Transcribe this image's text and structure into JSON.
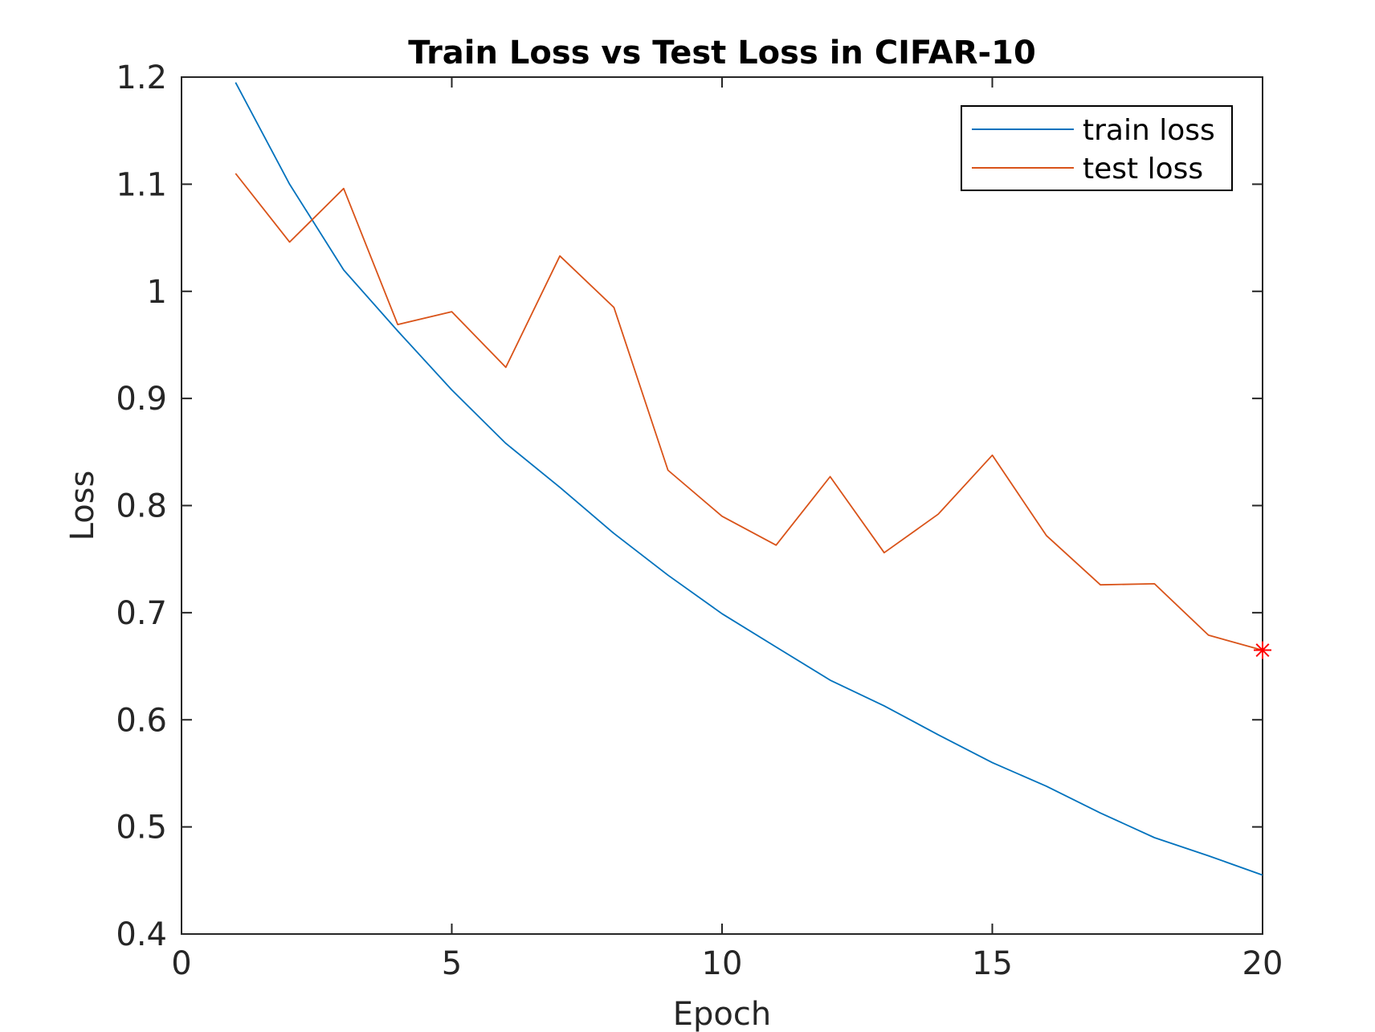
{
  "chart_data": {
    "type": "line",
    "title": "Train Loss vs Test Loss in CIFAR-10",
    "xlabel": "Epoch",
    "ylabel": "Loss",
    "xlim": [
      0,
      20
    ],
    "ylim": [
      0.4,
      1.2
    ],
    "xticks": [
      0,
      5,
      10,
      15,
      20
    ],
    "xtick_labels": [
      "0",
      "5",
      "10",
      "15",
      "20"
    ],
    "yticks": [
      0.4,
      0.5,
      0.6,
      0.7,
      0.8,
      0.9,
      1.0,
      1.1,
      1.2
    ],
    "ytick_labels": [
      "0.4",
      "0.5",
      "0.6",
      "0.7",
      "0.8",
      "0.9",
      "1",
      "1.1",
      "1.2"
    ],
    "grid": false,
    "legend_position": "top-right",
    "x": [
      1,
      2,
      3,
      4,
      5,
      6,
      7,
      8,
      9,
      10,
      11,
      12,
      13,
      14,
      15,
      16,
      17,
      18,
      19,
      20
    ],
    "series": [
      {
        "name": "train loss",
        "color": "#0072BD",
        "values": [
          1.195,
          1.1,
          1.02,
          0.963,
          0.908,
          0.858,
          0.817,
          0.774,
          0.735,
          0.699,
          0.668,
          0.637,
          0.613,
          0.586,
          0.56,
          0.538,
          0.513,
          0.49,
          0.473,
          0.455
        ]
      },
      {
        "name": "test loss",
        "color": "#D95319",
        "values": [
          1.11,
          1.046,
          1.096,
          0.969,
          0.981,
          0.929,
          1.033,
          0.985,
          0.833,
          0.79,
          0.763,
          0.827,
          0.756,
          0.792,
          0.847,
          0.772,
          0.726,
          0.727,
          0.679,
          0.665
        ]
      }
    ],
    "marker": {
      "x": 20,
      "y": 0.665,
      "symbol": "asterisk",
      "color": "#FF0000"
    }
  }
}
